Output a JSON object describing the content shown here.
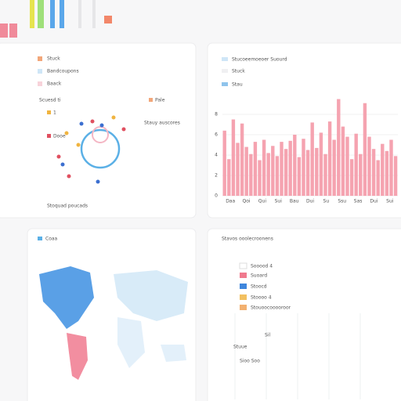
{
  "top_left_card": {
    "legend": [
      "Stuck",
      "Bandcoupons",
      "Baack"
    ],
    "header": "Scuesd ti",
    "tag": "Pale",
    "dot_labels": [
      "1",
      "Dooe"
    ],
    "series_label": "Stauy auscores",
    "footer": "Stoquad poucads"
  },
  "top_right_card": {
    "title": "Stucoeemoeoer Suourd",
    "legend": [
      "Stuck",
      "Stau"
    ],
    "chart": {
      "values": [
        6.4,
        3.6,
        7.5,
        5.2,
        7.1,
        4.8,
        4.1,
        5.3,
        3.5,
        5.5,
        4.2,
        4.9,
        3.9,
        5.3,
        4.6,
        5.4,
        6.0,
        3.8,
        5.6,
        4.5,
        7.2,
        4.7,
        6.2,
        4.1,
        7.3,
        5.5,
        9.5,
        6.8,
        5.8,
        3.6,
        6.1,
        4.1,
        9.1,
        5.8,
        4.6,
        3.5,
        5.1,
        4.4,
        5.5,
        3.9
      ],
      "color": "#f5a3b0",
      "ylim": [
        0,
        10
      ],
      "yticks": [
        0,
        2,
        4,
        6,
        8
      ],
      "x_labels": [
        "Daa",
        "Qoi",
        "Qui",
        "Sui",
        "Bau",
        "Dui",
        "Su",
        "Ssu",
        "Sas",
        "Dui",
        "Sui"
      ]
    }
  },
  "bottom_left_card": {
    "title": "Coaa"
  },
  "bottom_right_card": {
    "title": "Stavos ooolecroonens",
    "legend": [
      "Sooood 4",
      "Suoard",
      "Stoocd",
      "Stoooo 4",
      "Stouoocooooroor"
    ],
    "notes": [
      "Sil",
      "Stuue",
      "Sioo Soo"
    ]
  }
}
